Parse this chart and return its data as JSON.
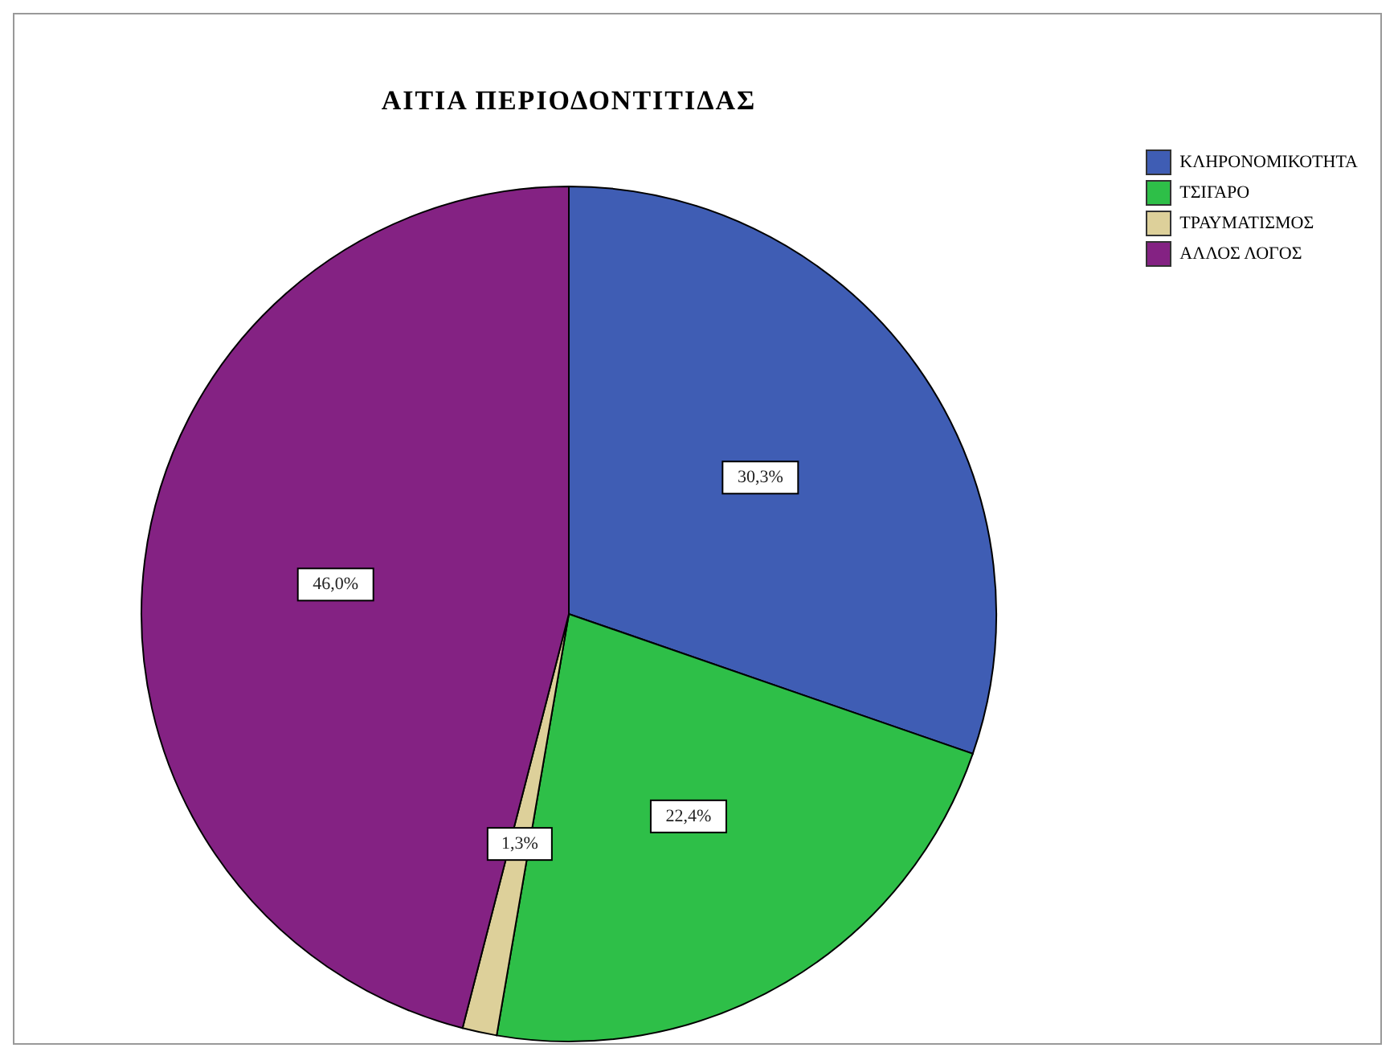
{
  "chart_data": {
    "type": "pie",
    "title": "ΑΙΤΙΑ ΠΕΡΙΟΔΟΝΤΙΤΙΔΑΣ",
    "categories": [
      "ΚΛΗΡΟΝΟΜΙΚΟΤΗΤΑ",
      "ΤΣΙΓΑΡΟ",
      "ΤΡΑΥΜΑΤΙΣΜΟΣ",
      "ΑΛΛΟΣ ΛΟΓΟΣ"
    ],
    "values": [
      30.3,
      22.4,
      1.3,
      46.0
    ],
    "colors": [
      "#3f5db4",
      "#2ebf48",
      "#ddd09a",
      "#842283"
    ],
    "value_labels": [
      "30,3%",
      "22,4%",
      "1,3%",
      "46,0%"
    ],
    "legend": "top right"
  }
}
